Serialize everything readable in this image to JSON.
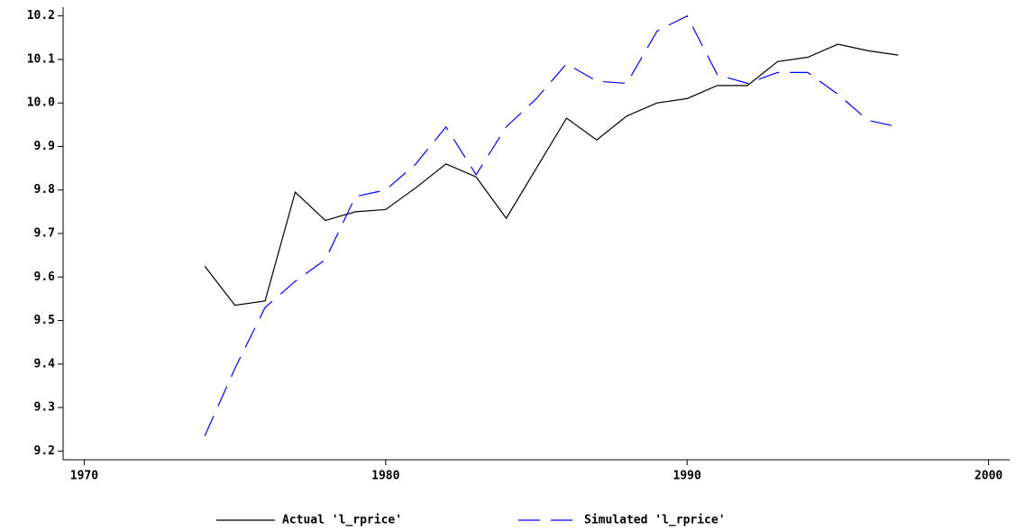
{
  "chart_data": {
    "type": "line",
    "x": [
      1974,
      1975,
      1976,
      1977,
      1978,
      1979,
      1980,
      1981,
      1982,
      1983,
      1984,
      1985,
      1986,
      1987,
      1988,
      1989,
      1990,
      1991,
      1992,
      1993,
      1994,
      1995,
      1996,
      1997
    ],
    "series": [
      {
        "name": "Actual 'l_rprice'",
        "color": "#000000",
        "dash": false,
        "values": [
          9.625,
          9.535,
          9.545,
          9.795,
          9.73,
          9.75,
          9.755,
          9.805,
          9.86,
          9.83,
          9.735,
          9.85,
          9.965,
          9.915,
          9.97,
          10.0,
          10.01,
          10.04,
          10.04,
          10.095,
          10.105,
          10.135,
          10.12,
          10.11
        ]
      },
      {
        "name": "Simulated 'l_rprice'",
        "color": "#0000ff",
        "dash": true,
        "values": [
          9.235,
          9.39,
          9.53,
          9.59,
          9.64,
          9.785,
          9.8,
          9.86,
          9.945,
          9.835,
          9.945,
          10.01,
          10.09,
          10.05,
          10.045,
          10.165,
          10.2,
          10.065,
          10.045,
          10.07,
          10.07,
          10.02,
          9.96,
          9.945
        ]
      }
    ],
    "xlim": [
      1969.3,
      2000.7
    ],
    "xticks": [
      1970,
      1980,
      1990,
      2000
    ],
    "ylim": [
      9.18,
      10.22
    ],
    "yticks": [
      9.2,
      9.3,
      9.4,
      9.5,
      9.6,
      9.7,
      9.8,
      9.9,
      {
        "value": 10,
        "label": "10.0"
      },
      10.1,
      10.2
    ],
    "legend": "bottom"
  }
}
